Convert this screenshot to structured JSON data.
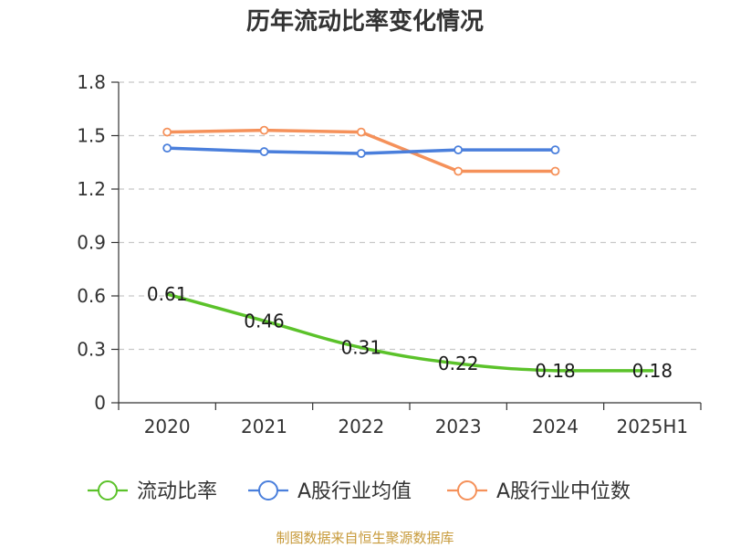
{
  "chart_data": {
    "type": "line",
    "title": "历年流动比率变化情况",
    "categories": [
      "2020",
      "2021",
      "2022",
      "2023",
      "2024",
      "2025H1"
    ],
    "y_ticks": [
      "0",
      "0.3",
      "0.6",
      "0.9",
      "1.2",
      "1.5",
      "1.8"
    ],
    "ylim": [
      0,
      1.8
    ],
    "xlabel": "",
    "ylabel": "",
    "grid": true,
    "legend_position": "bottom",
    "series": [
      {
        "name": "流动比率",
        "color": "#5bc22a",
        "values": [
          0.61,
          0.46,
          0.31,
          0.22,
          0.18,
          0.18
        ],
        "labels": [
          "0.61",
          "0.46",
          "0.31",
          "0.22",
          "0.18",
          "0.18"
        ],
        "smooth": true,
        "show_markers": false
      },
      {
        "name": "A股行业均值",
        "color": "#4a7fdc",
        "values": [
          1.43,
          1.41,
          1.4,
          1.42,
          1.42,
          null
        ],
        "smooth": false,
        "show_markers": true
      },
      {
        "name": "A股行业中位数",
        "color": "#f5915a",
        "values": [
          1.52,
          1.53,
          1.52,
          1.3,
          1.3,
          null
        ],
        "smooth": false,
        "show_markers": true
      }
    ]
  },
  "source": "制图数据来自恒生聚源数据库"
}
